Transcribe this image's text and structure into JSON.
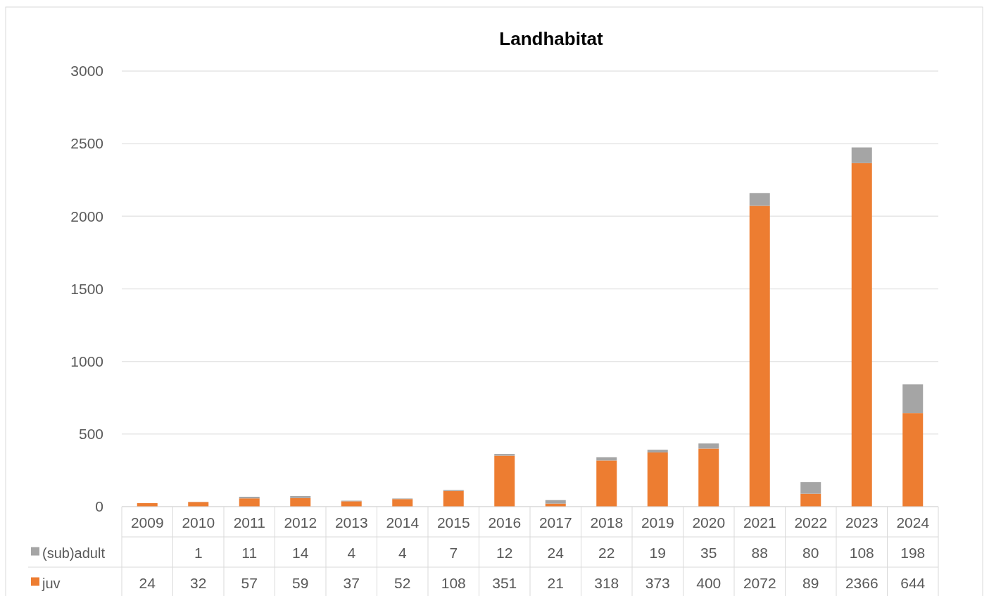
{
  "chart_data": {
    "type": "bar",
    "title": "Landhabitat",
    "stacked": true,
    "data_labels": true,
    "grid": "y",
    "legend": "bottom left",
    "categories": [
      "2009",
      "2010",
      "2011",
      "2012",
      "2013",
      "2014",
      "2015",
      "2016",
      "2017",
      "2018",
      "2019",
      "2020",
      "2021",
      "2022",
      "2023",
      "2024"
    ],
    "ylim": [
      0,
      3000
    ],
    "yticks": [
      0,
      500,
      1000,
      1500,
      2000,
      2500,
      3000
    ],
    "series": [
      {
        "name": "juv",
        "color": "#ed7d31",
        "values": [
          24,
          32,
          57,
          59,
          37,
          52,
          108,
          351,
          21,
          318,
          373,
          400,
          2072,
          89,
          2366,
          644
        ]
      },
      {
        "name": "(sub)adult",
        "color": "#a5a5a5",
        "values": [
          null,
          1,
          11,
          14,
          4,
          4,
          7,
          12,
          24,
          22,
          19,
          35,
          88,
          80,
          108,
          198
        ]
      }
    ]
  }
}
